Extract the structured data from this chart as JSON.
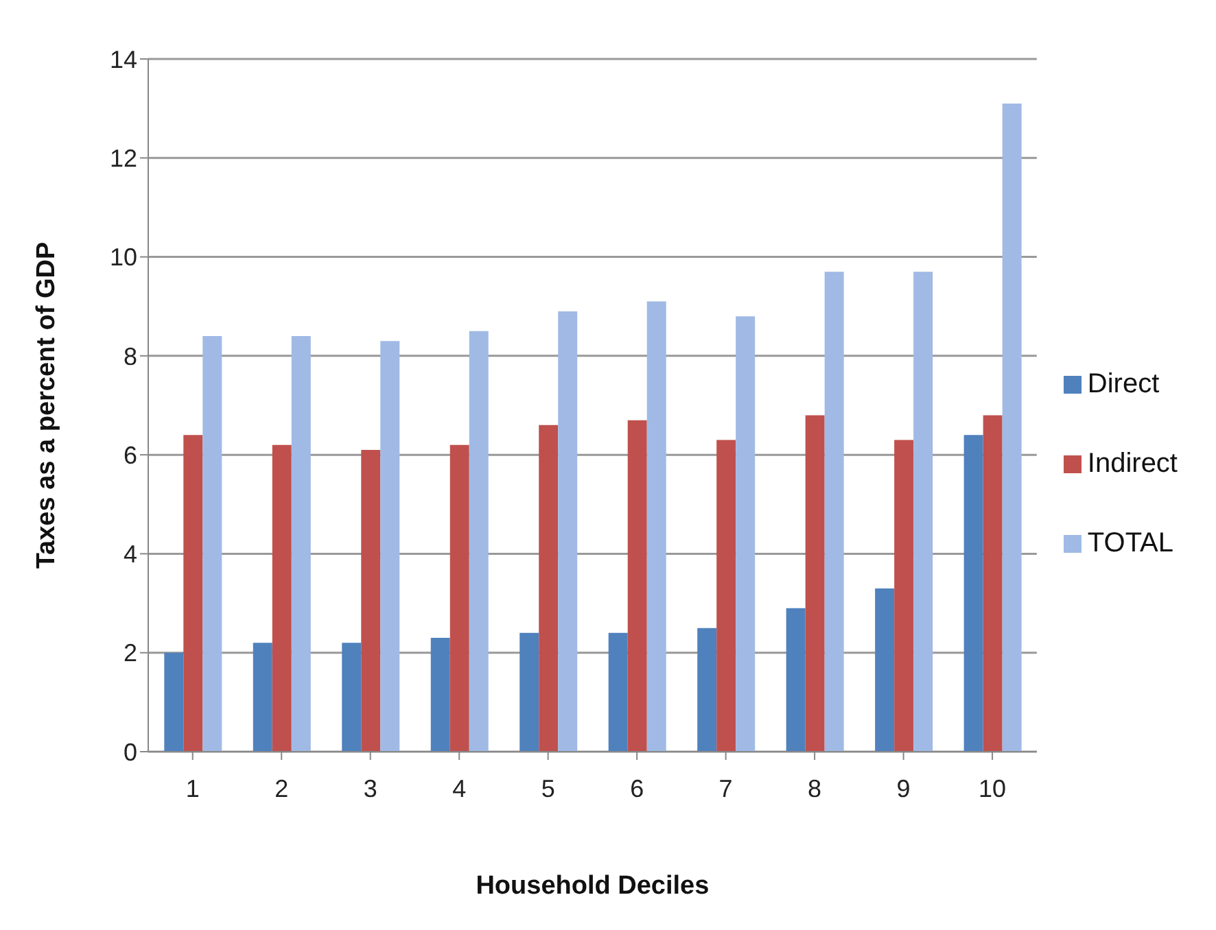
{
  "chart_data": {
    "type": "bar",
    "xlabel": "Household Deciles",
    "ylabel": "Taxes as a percent of GDP",
    "categories": [
      "1",
      "2",
      "3",
      "4",
      "5",
      "6",
      "7",
      "8",
      "9",
      "10"
    ],
    "series": [
      {
        "name": "Direct",
        "color": "#4f81bd",
        "values": [
          2.0,
          2.2,
          2.2,
          2.3,
          2.4,
          2.4,
          2.5,
          2.9,
          3.3,
          6.4
        ]
      },
      {
        "name": "Indirect",
        "color": "#c0504d",
        "values": [
          6.4,
          6.2,
          6.1,
          6.2,
          6.6,
          6.7,
          6.3,
          6.8,
          6.3,
          6.8
        ]
      },
      {
        "name": "TOTAL",
        "color": "#a0bae5",
        "values": [
          8.4,
          8.4,
          8.3,
          8.5,
          8.9,
          9.1,
          8.8,
          9.7,
          9.7,
          13.1
        ]
      }
    ],
    "ylim": [
      0,
      14
    ],
    "yticks": [
      0,
      2,
      4,
      6,
      8,
      10,
      12,
      14
    ],
    "grid": "y",
    "legend": "right"
  }
}
